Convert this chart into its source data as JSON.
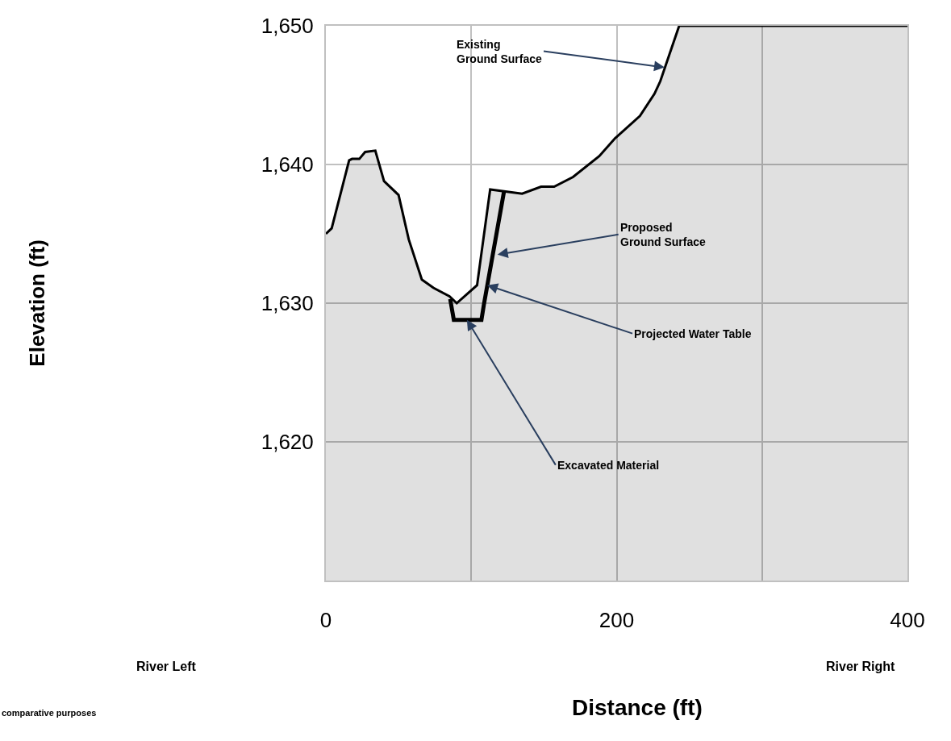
{
  "chart_data": {
    "type": "area",
    "xlabel": "Distance (ft)",
    "xlim": [
      0,
      400
    ],
    "xticks": [
      0,
      {
        "value": 100,
        "label": null
      },
      200,
      {
        "value": 300,
        "label": null
      },
      400
    ],
    "ylim": [
      1610,
      1650
    ],
    "yticks": [
      {
        "value": 1620,
        "label": "1,620"
      },
      {
        "value": 1630,
        "label": "1,630"
      },
      {
        "value": 1640,
        "label": "1,640"
      },
      {
        "value": 1650,
        "label": "1,650"
      }
    ],
    "grid": true,
    "series": [
      {
        "color": "#000000",
        "x": [
          0,
          4,
          16,
          18,
          23,
          27,
          34,
          40,
          50,
          57,
          66,
          74,
          85,
          90,
          104,
          113,
          135,
          148,
          157,
          170,
          188,
          199,
          216,
          226,
          230,
          243,
          400
        ],
        "values": [
          1635,
          1635.4,
          1640.3,
          1640.4,
          1640.4,
          1640.9,
          1641,
          1638.8,
          1637.8,
          1634.6,
          1631.7,
          1631.1,
          1630.5,
          1630,
          1631.3,
          1638.2,
          1637.9,
          1638.4,
          1638.4,
          1639.1,
          1640.6,
          1641.9,
          1643.5,
          1645.1,
          1646,
          1650,
          1650
        ]
      },
      {
        "type": "line",
        "color": "#000000",
        "x": [
          85.5,
          88,
          107,
          108.7,
          122.6
        ],
        "values": [
          1630.3,
          1628.8,
          1628.8,
          1629.9,
          1638.1
        ]
      }
    ],
    "annotations": [
      {
        "text": "Existing\nGround Surface",
        "x": 233,
        "y": 1647
      },
      {
        "text": "Proposed\nGround Surface",
        "x": 118,
        "y": 1633.5
      },
      {
        "text": "Projected Water Table",
        "x": 111,
        "y": 1631.3
      },
      {
        "text": "Excavated Material",
        "x": 97,
        "y": 1628.8
      },
      "River Left",
      "River Right",
      "comparative purposes",
      "Elevation (ft)"
    ]
  }
}
